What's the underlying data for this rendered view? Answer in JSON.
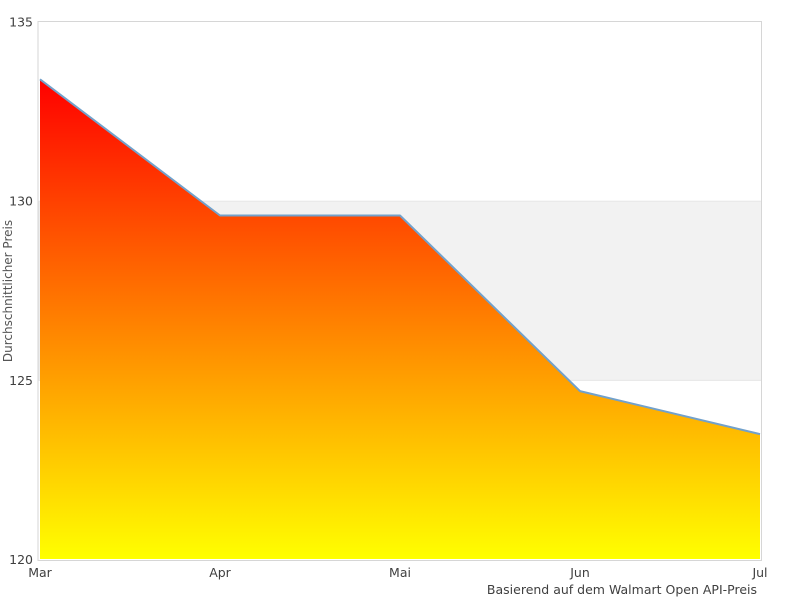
{
  "chart_data": {
    "type": "area",
    "x": [
      "Mar",
      "Apr",
      "Mai",
      "Jun",
      "Jul"
    ],
    "series": [
      {
        "name": "Durchschnittlicher Preis",
        "values": [
          133.4,
          129.6,
          129.6,
          124.7,
          123.5
        ]
      }
    ],
    "title": "",
    "xlabel": "",
    "ylabel": "Durchschnittlicher Preis",
    "caption": "Basierend auf dem Walmart Open API-Preis",
    "ylim": [
      120,
      135
    ],
    "yticks": [
      120,
      125,
      130,
      135
    ],
    "band": {
      "from": 125,
      "to": 130,
      "fill": "#f2f2f2",
      "stroke": "#e7e7e7"
    },
    "grid": false,
    "legend": "none",
    "colors": {
      "gradient_top": "#ff0000",
      "gradient_bottom": "#ffff00",
      "line": "#72a1cb",
      "plot_border": "#d6d6d6",
      "tick_text": "#3f3f3f",
      "background": "#ffffff"
    }
  }
}
